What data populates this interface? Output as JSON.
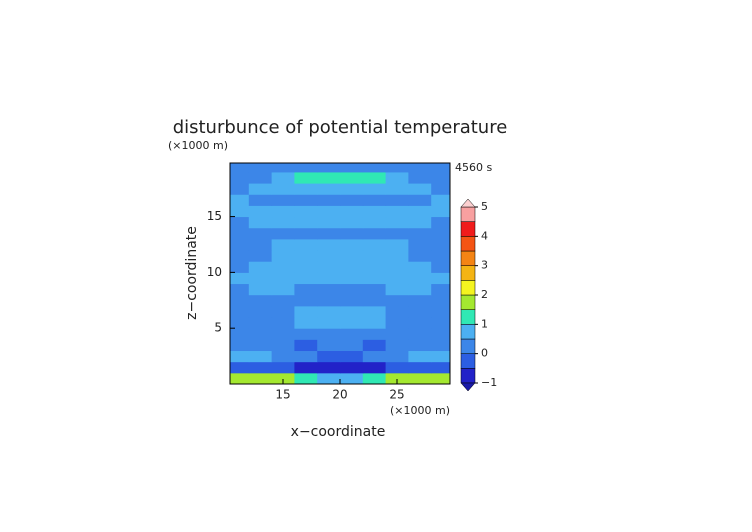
{
  "chart_data": {
    "type": "contour",
    "title": "disturbunce of potential temperature",
    "time_label": "4560 s",
    "x_label": "x−coordinate",
    "y_label": "z−coordinate",
    "x_unit": "(×1000 m)",
    "y_unit": "(×1000 m)",
    "xlim": [
      10.35,
      29.65
    ],
    "ylim": [
      0,
      19.8
    ],
    "xticks": [
      15,
      20,
      25
    ],
    "yticks": [
      5,
      10,
      15
    ],
    "x": [
      11,
      13,
      15,
      17,
      19,
      21,
      23,
      25,
      27,
      29
    ],
    "y": [
      0.5,
      1.5,
      2.5,
      3.5,
      4.5,
      5.5,
      6.5,
      7.5,
      8.5,
      9.5,
      10.5,
      11.5,
      12.5,
      13.5,
      14.5,
      15.5,
      16.5,
      17.5,
      18.5,
      19.5
    ],
    "z": [
      [
        1.8,
        1.8,
        1.8,
        1.2,
        0.6,
        0.6,
        1.2,
        1.8,
        1.8,
        1.8
      ],
      [
        -0.3,
        -0.3,
        -0.3,
        -0.7,
        -0.7,
        -0.7,
        -0.7,
        -0.3,
        -0.3,
        -0.3
      ],
      [
        0.6,
        0.6,
        0.3,
        0.3,
        -0.3,
        -0.3,
        0.3,
        0.3,
        0.6,
        0.6
      ],
      [
        0.3,
        0.3,
        0.3,
        -0.3,
        0.3,
        0.3,
        -0.3,
        0.3,
        0.3,
        0.3
      ],
      [
        0.3,
        0.3,
        0.3,
        0.3,
        0.3,
        0.3,
        0.3,
        0.3,
        0.3,
        0.3
      ],
      [
        0.3,
        0.3,
        0.3,
        0.6,
        0.6,
        0.6,
        0.6,
        0.3,
        0.3,
        0.3
      ],
      [
        0.3,
        0.3,
        0.3,
        0.6,
        0.6,
        0.6,
        0.6,
        0.3,
        0.3,
        0.3
      ],
      [
        0.3,
        0.3,
        0.3,
        0.3,
        0.3,
        0.3,
        0.3,
        0.3,
        0.3,
        0.3
      ],
      [
        0.3,
        0.6,
        0.6,
        0.3,
        0.3,
        0.3,
        0.3,
        0.6,
        0.6,
        0.3
      ],
      [
        0.6,
        0.6,
        0.6,
        0.6,
        0.6,
        0.6,
        0.6,
        0.6,
        0.6,
        0.6
      ],
      [
        0.3,
        0.6,
        0.6,
        0.6,
        0.6,
        0.6,
        0.6,
        0.6,
        0.6,
        0.3
      ],
      [
        0.3,
        0.3,
        0.6,
        0.6,
        0.6,
        0.6,
        0.6,
        0.6,
        0.3,
        0.3
      ],
      [
        0.3,
        0.3,
        0.6,
        0.6,
        0.6,
        0.6,
        0.6,
        0.6,
        0.3,
        0.3
      ],
      [
        0.3,
        0.3,
        0.3,
        0.3,
        0.3,
        0.3,
        0.3,
        0.3,
        0.3,
        0.3
      ],
      [
        0.3,
        0.6,
        0.6,
        0.6,
        0.6,
        0.6,
        0.6,
        0.6,
        0.6,
        0.3
      ],
      [
        0.6,
        0.6,
        0.6,
        0.6,
        0.6,
        0.6,
        0.6,
        0.6,
        0.6,
        0.6
      ],
      [
        0.6,
        0.3,
        0.3,
        0.3,
        0.3,
        0.3,
        0.3,
        0.3,
        0.3,
        0.6
      ],
      [
        0.3,
        0.5,
        0.6,
        0.7,
        0.7,
        0.7,
        0.7,
        0.6,
        0.5,
        0.3
      ],
      [
        0.3,
        0.4,
        0.7,
        1.2,
        1.3,
        1.3,
        1.2,
        0.7,
        0.4,
        0.3
      ],
      [
        0.2,
        0.2,
        0.2,
        0.2,
        0.2,
        0.2,
        0.2,
        0.2,
        0.2,
        0.2
      ]
    ],
    "colorbar": {
      "levels": [
        -1,
        -0.5,
        0,
        0.5,
        1,
        1.5,
        2,
        2.5,
        3,
        3.5,
        4,
        4.5,
        5
      ],
      "colors": [
        "#2222c8",
        "#2c5ee2",
        "#3c86e8",
        "#4cb0f2",
        "#30e8b4",
        "#a4e830",
        "#f4f420",
        "#f4b414",
        "#f48414",
        "#f45414",
        "#f01c1c",
        "#f8a0a0"
      ],
      "under_color": "#1a1aa8",
      "over_color": "#fcd0d0",
      "ticks": [
        {
          "value": -1,
          "label": "−1"
        },
        0,
        1,
        2,
        3,
        4,
        5
      ]
    }
  }
}
